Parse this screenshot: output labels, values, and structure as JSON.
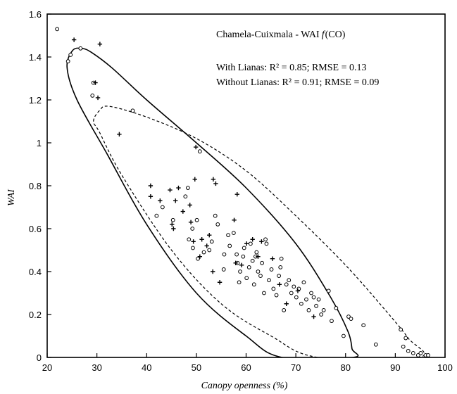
{
  "chart_data": {
    "type": "scatter",
    "title": "Chamela-Cuixmala - WAI f(CO)",
    "title_parts": {
      "prefix": "Chamela-Cuixmala - ",
      "wai": "WAI",
      "f": "f",
      "co": "(CO)"
    },
    "annotations": [
      {
        "text": "With Lianas: R² = 0.85; RMSE = 0.13"
      },
      {
        "text": "Without Lianas: R² = 0.91; RMSE = 0.09"
      }
    ],
    "xlabel": "Canopy openness (%)",
    "ylabel": "WAI",
    "xlim": [
      20,
      100
    ],
    "ylim": [
      0,
      1.6
    ],
    "xticks": [
      "20",
      "30",
      "40",
      "50",
      "60",
      "70",
      "80",
      "90",
      "100"
    ],
    "yticks": [
      "0",
      "0.2",
      "0.4",
      "0.6",
      "0.8",
      "1",
      "1.2",
      "1.4",
      "1.6"
    ],
    "grid": false,
    "series": [
      {
        "marker": "circle",
        "points": [
          [
            22.0,
            1.53
          ],
          [
            24.2,
            1.38
          ],
          [
            24.7,
            1.41
          ],
          [
            26.7,
            1.44
          ],
          [
            29.3,
            1.28
          ],
          [
            29.1,
            1.22
          ],
          [
            37.2,
            1.15
          ],
          [
            50.7,
            0.96
          ],
          [
            42.0,
            0.66
          ],
          [
            43.2,
            0.7
          ],
          [
            45.3,
            0.64
          ],
          [
            47.8,
            0.75
          ],
          [
            48.3,
            0.79
          ],
          [
            48.5,
            0.55
          ],
          [
            49.2,
            0.6
          ],
          [
            50.1,
            0.64
          ],
          [
            49.3,
            0.51
          ],
          [
            50.3,
            0.46
          ],
          [
            51.5,
            0.49
          ],
          [
            52.6,
            0.5
          ],
          [
            53.1,
            0.54
          ],
          [
            53.8,
            0.66
          ],
          [
            54.3,
            0.62
          ],
          [
            55.5,
            0.41
          ],
          [
            56.4,
            0.57
          ],
          [
            56.7,
            0.52
          ],
          [
            57.5,
            0.58
          ],
          [
            58.1,
            0.48
          ],
          [
            58.3,
            0.44
          ],
          [
            58.8,
            0.4
          ],
          [
            59.4,
            0.47
          ],
          [
            59.6,
            0.51
          ],
          [
            60.1,
            0.37
          ],
          [
            60.6,
            0.42
          ],
          [
            60.9,
            0.53
          ],
          [
            61.3,
            0.45
          ],
          [
            61.6,
            0.34
          ],
          [
            62.1,
            0.49
          ],
          [
            62.4,
            0.4
          ],
          [
            62.9,
            0.38
          ],
          [
            63.2,
            0.44
          ],
          [
            63.6,
            0.3
          ],
          [
            64.1,
            0.53
          ],
          [
            64.6,
            0.36
          ],
          [
            65.1,
            0.41
          ],
          [
            65.5,
            0.32
          ],
          [
            66.1,
            0.29
          ],
          [
            66.6,
            0.38
          ],
          [
            67.1,
            0.46
          ],
          [
            67.6,
            0.22
          ],
          [
            68.1,
            0.34
          ],
          [
            68.6,
            0.36
          ],
          [
            69.1,
            0.3
          ],
          [
            69.6,
            0.33
          ],
          [
            70.1,
            0.28
          ],
          [
            70.6,
            0.32
          ],
          [
            71.1,
            0.25
          ],
          [
            71.6,
            0.35
          ],
          [
            72.1,
            0.27
          ],
          [
            72.6,
            0.22
          ],
          [
            73.1,
            0.3
          ],
          [
            73.6,
            0.28
          ],
          [
            74.1,
            0.24
          ],
          [
            74.6,
            0.27
          ],
          [
            75.1,
            0.2
          ],
          [
            75.6,
            0.22
          ],
          [
            76.6,
            0.31
          ],
          [
            77.2,
            0.17
          ],
          [
            78.1,
            0.23
          ],
          [
            79.6,
            0.1
          ],
          [
            80.6,
            0.19
          ],
          [
            81.1,
            0.18
          ],
          [
            83.6,
            0.15
          ],
          [
            86.1,
            0.06
          ],
          [
            91.1,
            0.13
          ],
          [
            91.6,
            0.05
          ],
          [
            92.1,
            0.09
          ],
          [
            92.6,
            0.03
          ],
          [
            93.6,
            0.02
          ],
          [
            94.6,
            0.01
          ],
          [
            95.1,
            0.02
          ],
          [
            96.1,
            0.01
          ],
          [
            96.6,
            0.01
          ],
          [
            55.6,
            0.48
          ],
          [
            58.6,
            0.35
          ],
          [
            61.9,
            0.47
          ],
          [
            63.9,
            0.55
          ],
          [
            66.9,
            0.42
          ]
        ]
      },
      {
        "marker": "plus",
        "points": [
          [
            25.4,
            1.48
          ],
          [
            30.6,
            1.46
          ],
          [
            29.7,
            1.28
          ],
          [
            30.2,
            1.21
          ],
          [
            34.5,
            1.04
          ],
          [
            49.9,
            0.98
          ],
          [
            40.8,
            0.8
          ],
          [
            40.8,
            0.75
          ],
          [
            42.7,
            0.73
          ],
          [
            44.7,
            0.78
          ],
          [
            45.1,
            0.62
          ],
          [
            45.4,
            0.6
          ],
          [
            45.8,
            0.73
          ],
          [
            46.4,
            0.79
          ],
          [
            47.3,
            0.68
          ],
          [
            48.7,
            0.71
          ],
          [
            48.9,
            0.63
          ],
          [
            49.4,
            0.54
          ],
          [
            49.7,
            0.83
          ],
          [
            50.7,
            0.47
          ],
          [
            51.1,
            0.55
          ],
          [
            52.1,
            0.52
          ],
          [
            53.4,
            0.83
          ],
          [
            53.3,
            0.4
          ],
          [
            53.9,
            0.81
          ],
          [
            54.7,
            0.35
          ],
          [
            57.6,
            0.64
          ],
          [
            58.2,
            0.76
          ],
          [
            57.9,
            0.44
          ],
          [
            59.1,
            0.43
          ],
          [
            60.1,
            0.53
          ],
          [
            61.3,
            0.55
          ],
          [
            62.4,
            0.47
          ],
          [
            63.1,
            0.54
          ],
          [
            65.3,
            0.46
          ],
          [
            66.7,
            0.34
          ],
          [
            68.1,
            0.25
          ],
          [
            70.4,
            0.31
          ],
          [
            73.6,
            0.19
          ],
          [
            52.6,
            0.57
          ]
        ]
      }
    ],
    "ellipses": [
      {
        "style": "solid",
        "points": [
          [
            25.1,
            1.43
          ],
          [
            27.0,
            1.44
          ],
          [
            29.0,
            1.42
          ],
          [
            33.0,
            1.35
          ],
          [
            40.0,
            1.2
          ],
          [
            50.0,
            1.0
          ],
          [
            60.0,
            0.79
          ],
          [
            70.0,
            0.53
          ],
          [
            77.0,
            0.28
          ],
          [
            80.5,
            0.12
          ],
          [
            81.3,
            0.04
          ],
          [
            81.5,
            0.0
          ],
          [
            67.2,
            0.0
          ],
          [
            60.0,
            0.1
          ],
          [
            50.0,
            0.3
          ],
          [
            40.0,
            0.62
          ],
          [
            32.0,
            0.95
          ],
          [
            26.0,
            1.2
          ],
          [
            24.0,
            1.35
          ]
        ]
      },
      {
        "style": "dashed",
        "points": [
          [
            29.3,
            1.1
          ],
          [
            30.5,
            1.15
          ],
          [
            32.5,
            1.17
          ],
          [
            40.0,
            1.12
          ],
          [
            50.0,
            1.02
          ],
          [
            60.0,
            0.87
          ],
          [
            70.0,
            0.66
          ],
          [
            80.0,
            0.43
          ],
          [
            88.0,
            0.22
          ],
          [
            92.6,
            0.09
          ],
          [
            94.8,
            0.0
          ],
          [
            74.5,
            0.0
          ],
          [
            65.0,
            0.1
          ],
          [
            55.0,
            0.25
          ],
          [
            45.0,
            0.5
          ],
          [
            35.0,
            0.85
          ],
          [
            30.5,
            1.05
          ]
        ]
      }
    ]
  }
}
